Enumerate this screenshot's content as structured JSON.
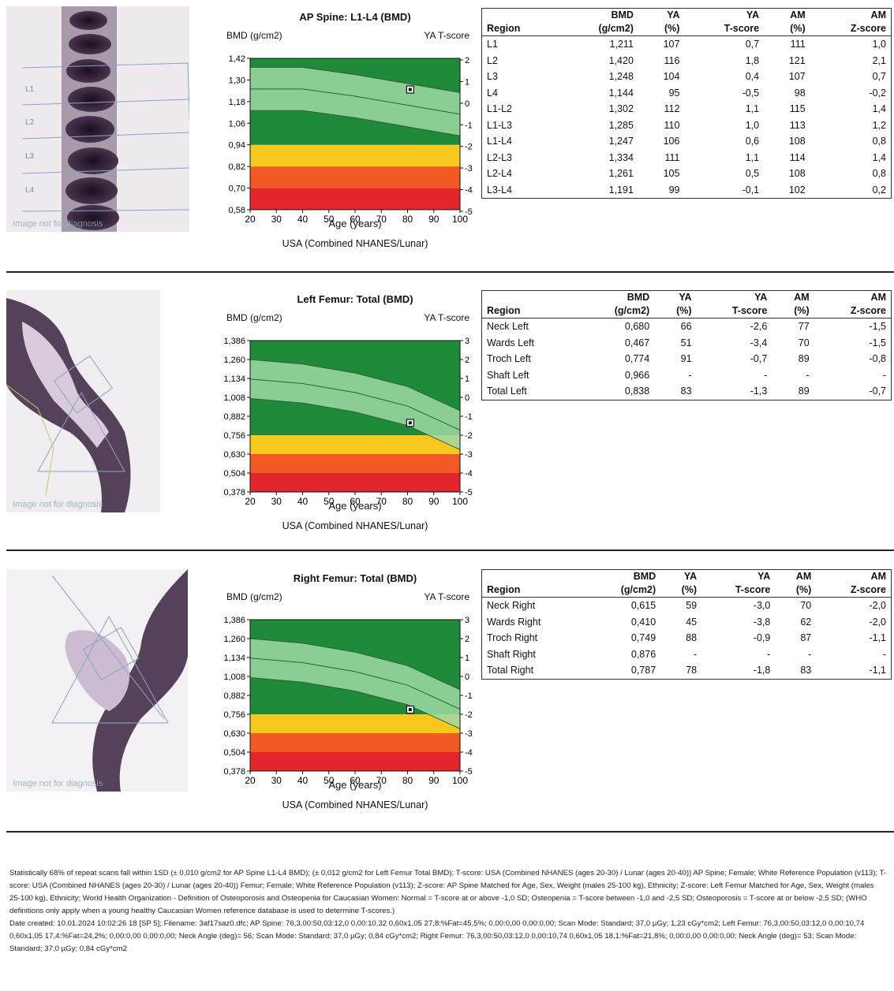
{
  "scan_caption": "Image not for diagnosis",
  "sections": [
    {
      "key": "spine",
      "title": "AP Spine: L1-L4 (BMD)",
      "y_label": "BMD (g/cm2)",
      "y2_label": "YA T-score",
      "x_label": "Age (years)",
      "reference": "USA (Combined NHANES/Lunar)",
      "vertebra_labels": [
        "L1",
        "L2",
        "L3",
        "L4"
      ],
      "table": {
        "headers_top": [
          "",
          "BMD",
          "YA",
          "YA",
          "AM",
          "AM"
        ],
        "headers_bottom": [
          "Region",
          "(g/cm2)",
          "(%)",
          "T-score",
          "(%)",
          "Z-score"
        ],
        "rows": [
          [
            "L1",
            "1,211",
            "107",
            "0,7",
            "111",
            "1,0"
          ],
          [
            "L2",
            "1,420",
            "116",
            "1,8",
            "121",
            "2,1"
          ],
          [
            "L3",
            "1,248",
            "104",
            "0,4",
            "107",
            "0,7"
          ],
          [
            "L4",
            "1,144",
            "95",
            "-0,5",
            "98",
            "-0,2"
          ],
          [
            "L1-L2",
            "1,302",
            "112",
            "1,1",
            "115",
            "1,4"
          ],
          [
            "L1-L3",
            "1,285",
            "110",
            "1,0",
            "113",
            "1,2"
          ],
          [
            "L1-L4",
            "1,247",
            "106",
            "0,6",
            "108",
            "0,8"
          ],
          [
            "L2-L3",
            "1,334",
            "111",
            "1,1",
            "114",
            "1,4"
          ],
          [
            "L2-L4",
            "1,261",
            "105",
            "0,5",
            "108",
            "0,8"
          ],
          [
            "L3-L4",
            "1,191",
            "99",
            "-0,1",
            "102",
            "0,2"
          ]
        ]
      }
    },
    {
      "key": "left",
      "title": "Left Femur: Total (BMD)",
      "y_label": "BMD (g/cm2)",
      "y2_label": "YA T-score",
      "x_label": "Age (years)",
      "reference": "USA (Combined NHANES/Lunar)",
      "table": {
        "headers_top": [
          "",
          "BMD",
          "YA",
          "YA",
          "AM",
          "AM"
        ],
        "headers_bottom": [
          "Region",
          "(g/cm2)",
          "(%)",
          "T-score",
          "(%)",
          "Z-score"
        ],
        "rows": [
          [
            "Neck Left",
            "0,680",
            "66",
            "-2,6",
            "77",
            "-1,5"
          ],
          [
            "Wards Left",
            "0,467",
            "51",
            "-3,4",
            "70",
            "-1,5"
          ],
          [
            "Troch Left",
            "0,774",
            "91",
            "-0,7",
            "89",
            "-0,8"
          ],
          [
            "Shaft Left",
            "0,966",
            "-",
            "-",
            "-",
            "-"
          ],
          [
            "Total Left",
            "0,838",
            "83",
            "-1,3",
            "89",
            "-0,7"
          ]
        ]
      }
    },
    {
      "key": "right",
      "title": "Right Femur: Total (BMD)",
      "y_label": "BMD (g/cm2)",
      "y2_label": "YA T-score",
      "x_label": "Age (years)",
      "reference": "USA (Combined NHANES/Lunar)",
      "table": {
        "headers_top": [
          "",
          "BMD",
          "YA",
          "YA",
          "AM",
          "AM"
        ],
        "headers_bottom": [
          "Region",
          "(g/cm2)",
          "(%)",
          "T-score",
          "(%)",
          "Z-score"
        ],
        "rows": [
          [
            "Neck Right",
            "0,615",
            "59",
            "-3,0",
            "70",
            "-2,0"
          ],
          [
            "Wards Right",
            "0,410",
            "45",
            "-3,8",
            "62",
            "-2,0"
          ],
          [
            "Troch Right",
            "0,749",
            "88",
            "-0,9",
            "87",
            "-1,1"
          ],
          [
            "Shaft Right",
            "0,876",
            "-",
            "-",
            "-",
            "-"
          ],
          [
            "Total Right",
            "0,787",
            "78",
            "-1,8",
            "83",
            "-1,1"
          ]
        ]
      }
    }
  ],
  "chart_data": [
    {
      "type": "line",
      "title": "AP Spine: L1-L4 (BMD)",
      "ylabel": "BMD (g/cm2)",
      "y2label": "YA T-score",
      "xlabel": "Age (years)",
      "reference": "USA (Combined NHANES/Lunar)",
      "xlim": [
        20,
        100
      ],
      "x_ticks": [
        20,
        30,
        40,
        50,
        60,
        70,
        80,
        90,
        100
      ],
      "x_tick_labels": [
        "20",
        "30",
        "40",
        "50",
        "60",
        "70",
        "80",
        "90",
        "100"
      ],
      "ylim": [
        0.58,
        1.42
      ],
      "y_ticks": [
        0.58,
        0.7,
        0.82,
        0.94,
        1.06,
        1.18,
        1.3,
        1.42
      ],
      "y_tick_labels": [
        "0,58",
        "0,70",
        "0,82",
        "0,94",
        "1,06",
        "1,18",
        "1,30",
        "1,42"
      ],
      "t_score_ticks": [
        2,
        1,
        0,
        -1,
        -2,
        -3,
        -4,
        -5
      ],
      "bands": [
        {
          "from": 0.58,
          "to": 0.7,
          "color": "#e3262c"
        },
        {
          "from": 0.7,
          "to": 0.82,
          "color": "#f15a24"
        },
        {
          "from": 0.82,
          "to": 0.94,
          "color": "#f7c81e"
        },
        {
          "from": 0.94,
          "to": 1.42,
          "color": "#1e8a3a"
        }
      ],
      "series": [
        {
          "values": [
            [
              20,
              1.37
            ],
            [
              40,
              1.37
            ],
            [
              60,
              1.33
            ],
            [
              80,
              1.28
            ],
            [
              100,
              1.23
            ]
          ]
        },
        {
          "values": [
            [
              20,
              1.25
            ],
            [
              40,
              1.25
            ],
            [
              60,
              1.21
            ],
            [
              80,
              1.16
            ],
            [
              100,
              1.11
            ]
          ]
        },
        {
          "values": [
            [
              20,
              1.13
            ],
            [
              40,
              1.13
            ],
            [
              60,
              1.09
            ],
            [
              80,
              1.04
            ],
            [
              100,
              0.99
            ]
          ]
        }
      ],
      "patient": {
        "x": 81,
        "y": 1.247
      }
    },
    {
      "type": "line",
      "title": "Left Femur: Total (BMD)",
      "ylabel": "BMD (g/cm2)",
      "y2label": "YA T-score",
      "xlabel": "Age (years)",
      "reference": "USA (Combined NHANES/Lunar)",
      "xlim": [
        20,
        100
      ],
      "x_ticks": [
        20,
        30,
        40,
        50,
        60,
        70,
        80,
        90,
        100
      ],
      "x_tick_labels": [
        "20",
        "30",
        "40",
        "50",
        "60",
        "70",
        "80",
        "90",
        "100"
      ],
      "ylim": [
        0.378,
        1.386
      ],
      "y_ticks": [
        0.378,
        0.504,
        0.63,
        0.756,
        0.882,
        1.008,
        1.134,
        1.26,
        1.386
      ],
      "y_tick_labels": [
        "0,378",
        "0,504",
        "0,630",
        "0,756",
        "0,882",
        "1,008",
        "1,134",
        "1,260",
        "1,386"
      ],
      "t_score_ticks": [
        3,
        2,
        1,
        0,
        -1,
        -2,
        -3,
        -4,
        -5
      ],
      "bands": [
        {
          "from": 0.378,
          "to": 0.504,
          "color": "#e3262c"
        },
        {
          "from": 0.504,
          "to": 0.63,
          "color": "#f15a24"
        },
        {
          "from": 0.63,
          "to": 0.756,
          "color": "#f7c81e"
        },
        {
          "from": 0.756,
          "to": 1.386,
          "color": "#1e8a3a"
        }
      ],
      "series": [
        {
          "values": [
            [
              20,
              1.26
            ],
            [
              40,
              1.23
            ],
            [
              60,
              1.17
            ],
            [
              80,
              1.08
            ],
            [
              100,
              0.92
            ]
          ]
        },
        {
          "values": [
            [
              20,
              1.13
            ],
            [
              40,
              1.1
            ],
            [
              60,
              1.04
            ],
            [
              80,
              0.95
            ],
            [
              100,
              0.79
            ]
          ]
        },
        {
          "values": [
            [
              20,
              1.0
            ],
            [
              40,
              0.97
            ],
            [
              60,
              0.91
            ],
            [
              80,
              0.82
            ],
            [
              100,
              0.66
            ]
          ]
        }
      ],
      "patient": {
        "x": 81,
        "y": 0.838
      }
    },
    {
      "type": "line",
      "title": "Right Femur: Total (BMD)",
      "ylabel": "BMD (g/cm2)",
      "y2label": "YA T-score",
      "xlabel": "Age (years)",
      "reference": "USA (Combined NHANES/Lunar)",
      "xlim": [
        20,
        100
      ],
      "x_ticks": [
        20,
        30,
        40,
        50,
        60,
        70,
        80,
        90,
        100
      ],
      "x_tick_labels": [
        "20",
        "30",
        "40",
        "50",
        "60",
        "70",
        "80",
        "90",
        "100"
      ],
      "ylim": [
        0.378,
        1.386
      ],
      "y_ticks": [
        0.378,
        0.504,
        0.63,
        0.756,
        0.882,
        1.008,
        1.134,
        1.26,
        1.386
      ],
      "y_tick_labels": [
        "0,378",
        "0,504",
        "0,630",
        "0,756",
        "0,882",
        "1,008",
        "1,134",
        "1,260",
        "1,386"
      ],
      "t_score_ticks": [
        3,
        2,
        1,
        0,
        -1,
        -2,
        -3,
        -4,
        -5
      ],
      "bands": [
        {
          "from": 0.378,
          "to": 0.504,
          "color": "#e3262c"
        },
        {
          "from": 0.504,
          "to": 0.63,
          "color": "#f15a24"
        },
        {
          "from": 0.63,
          "to": 0.756,
          "color": "#f7c81e"
        },
        {
          "from": 0.756,
          "to": 1.386,
          "color": "#1e8a3a"
        }
      ],
      "series": [
        {
          "values": [
            [
              20,
              1.26
            ],
            [
              40,
              1.23
            ],
            [
              60,
              1.17
            ],
            [
              80,
              1.08
            ],
            [
              100,
              0.92
            ]
          ]
        },
        {
          "values": [
            [
              20,
              1.13
            ],
            [
              40,
              1.1
            ],
            [
              60,
              1.04
            ],
            [
              80,
              0.95
            ],
            [
              100,
              0.79
            ]
          ]
        },
        {
          "values": [
            [
              20,
              1.0
            ],
            [
              40,
              0.97
            ],
            [
              60,
              0.91
            ],
            [
              80,
              0.82
            ],
            [
              100,
              0.66
            ]
          ]
        }
      ],
      "patient": {
        "x": 81,
        "y": 0.787
      }
    }
  ],
  "footer": [
    "Statistically 68% of repeat scans fall within 1SD (± 0,010 g/cm2 for AP Spine L1-L4 BMD); (± 0,012 g/cm2 for Left Femur Total BMD); T-score: USA (Combined NHANES (ages 20-30) / Lunar (ages 20-40)) AP Spine; Female; White Reference Population (v113); T-score: USA (Combined NHANES (ages 20-30) / Lunar (ages 20-40)) Femur; Female; White Reference Population (v113); Z-score: AP Spine Matched for Age, Sex, Weight (males 25-100 kg), Ethnicity; Z-score: Left Femur Matched for Age, Sex, Weight (males 25-100 kg), Ethnicity; World Health Organization - Definition of Osteoporosis and Osteopenia for Caucasian Women: Normal = T-score at or above -1,0 SD; Osteopenia = T-score between -1,0 and -2,5 SD; Osteoporosis = T-score at or below -2,5 SD; (WHO definitions only apply when a young healthy Caucasian Women reference database is used to determine T-scores.)",
    "Date created: 10.01.2024 10:02:26 18 [SP 5]; Filename: 3af17saz0.dfc; AP Spine: 76,3,00:50,03:12,0 0,00:10,32 0,60x1,05 27,8:%Fat=45,5%; 0,00:0,00 0,00:0,00; Scan Mode: Standard; 37,0 µGy; 1,23 cGy*cm2; Left Femur: 76,3,00:50,03:12,0 0,00:10,74 0,60x1,05 17,4:%Fat=24,2%; 0,00:0,00 0,00:0,00; Neck Angle (deg)= 56; Scan Mode: Standard; 37,0 µGy; 0,84 cGy*cm2; Right Femur: 76,3,00:50,03:12,0 0,00:10,74 0,60x1,05 18,1:%Fat=21,8%; 0,00:0,00 0,00:0,00; Neck Angle (deg)= 53; Scan Mode: Standard; 37,0 µGy; 0,84 cGy*cm2"
  ]
}
